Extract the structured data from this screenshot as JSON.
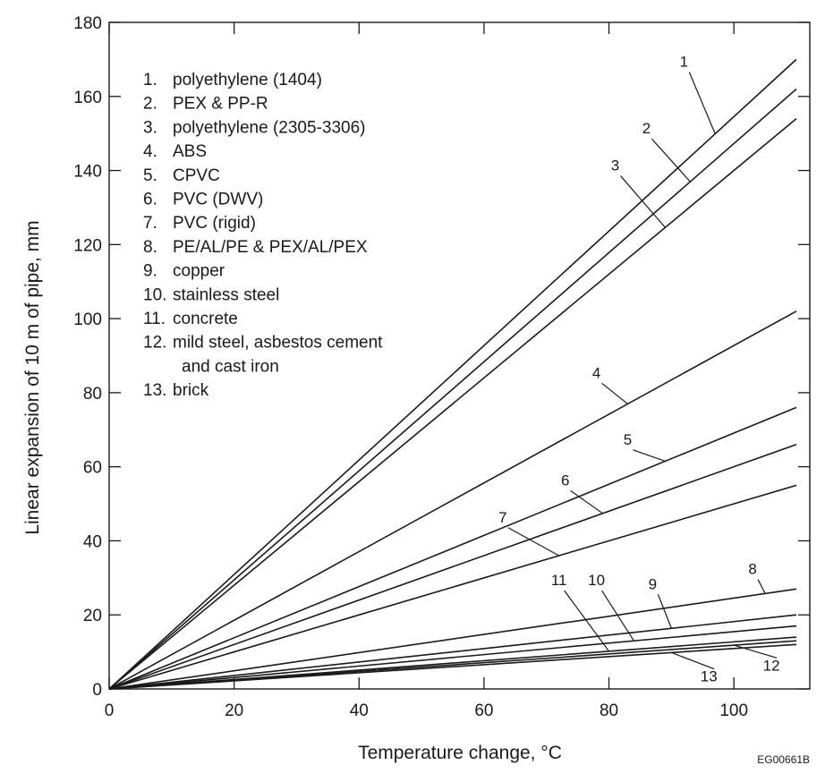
{
  "chart_data": {
    "type": "line",
    "xlabel": "Temperature change, °C",
    "ylabel": "Linear expansion of 10 m of pipe, mm",
    "xlim": [
      0,
      110
    ],
    "ylim": [
      0,
      180
    ],
    "x_ticks": [
      0,
      20,
      40,
      60,
      80,
      100
    ],
    "y_ticks": [
      0,
      20,
      40,
      60,
      80,
      100,
      120,
      140,
      160,
      180
    ],
    "grid": false,
    "legend_position": "top-left",
    "legend": [
      {
        "num": "1.",
        "text": "polyethylene (1404)"
      },
      {
        "num": "2.",
        "text": "PEX & PP-R"
      },
      {
        "num": "3.",
        "text": "polyethylene (2305-3306)"
      },
      {
        "num": "4.",
        "text": "ABS"
      },
      {
        "num": "5.",
        "text": "CPVC"
      },
      {
        "num": "6.",
        "text": "PVC (DWV)"
      },
      {
        "num": "7.",
        "text": "PVC (rigid)"
      },
      {
        "num": "8.",
        "text": "PE/AL/PE & PEX/AL/PEX"
      },
      {
        "num": "9.",
        "text": "copper"
      },
      {
        "num": "10.",
        "text": "stainless steel"
      },
      {
        "num": "11.",
        "text": "concrete"
      },
      {
        "num": "12.",
        "text": "mild steel, asbestos cement"
      },
      {
        "num": "",
        "text": "and cast iron"
      },
      {
        "num": "13.",
        "text": "brick"
      }
    ],
    "series": [
      {
        "label": "1",
        "x": [
          0,
          110
        ],
        "y": [
          0,
          170
        ]
      },
      {
        "label": "2",
        "x": [
          0,
          110
        ],
        "y": [
          0,
          162
        ]
      },
      {
        "label": "3",
        "x": [
          0,
          110
        ],
        "y": [
          0,
          154
        ]
      },
      {
        "label": "4",
        "x": [
          0,
          110
        ],
        "y": [
          0,
          102
        ]
      },
      {
        "label": "5",
        "x": [
          0,
          110
        ],
        "y": [
          0,
          76
        ]
      },
      {
        "label": "6",
        "x": [
          0,
          110
        ],
        "y": [
          0,
          66
        ]
      },
      {
        "label": "7",
        "x": [
          0,
          110
        ],
        "y": [
          0,
          55
        ]
      },
      {
        "label": "8",
        "x": [
          0,
          110
        ],
        "y": [
          0,
          27
        ]
      },
      {
        "label": "9",
        "x": [
          0,
          110
        ],
        "y": [
          0,
          20
        ]
      },
      {
        "label": "10",
        "x": [
          0,
          110
        ],
        "y": [
          0,
          17
        ]
      },
      {
        "label": "11",
        "x": [
          0,
          110
        ],
        "y": [
          0,
          14
        ]
      },
      {
        "label": "12",
        "x": [
          0,
          110
        ],
        "y": [
          0,
          13
        ]
      },
      {
        "label": "13",
        "x": [
          0,
          110
        ],
        "y": [
          0,
          12
        ]
      }
    ],
    "line_labels": [
      {
        "label": "1",
        "text_x": 92,
        "text_y": 168,
        "line_x": 97
      },
      {
        "label": "2",
        "text_x": 86,
        "text_y": 150,
        "line_x": 93
      },
      {
        "label": "3",
        "text_x": 81,
        "text_y": 140,
        "line_x": 89
      },
      {
        "label": "4",
        "text_x": 78,
        "text_y": 84,
        "line_x": 83
      },
      {
        "label": "5",
        "text_x": 83,
        "text_y": 66,
        "line_x": 89
      },
      {
        "label": "6",
        "text_x": 73,
        "text_y": 55,
        "line_x": 79
      },
      {
        "label": "7",
        "text_x": 63,
        "text_y": 45,
        "line_x": 72
      },
      {
        "label": "8",
        "text_x": 103,
        "text_y": 31,
        "line_x": 105
      },
      {
        "label": "9",
        "text_x": 87,
        "text_y": 27,
        "line_x": 90
      },
      {
        "label": "10",
        "text_x": 78,
        "text_y": 28,
        "line_x": 84
      },
      {
        "label": "11",
        "text_x": 72,
        "text_y": 28,
        "line_x": 80
      },
      {
        "label": "12",
        "text_x": 106,
        "text_y": 5,
        "line_x": 100
      },
      {
        "label": "13",
        "text_x": 96,
        "text_y": 2,
        "line_x": 90
      }
    ],
    "code": "EG00661B",
    "line_color": "#1a1a1a"
  }
}
